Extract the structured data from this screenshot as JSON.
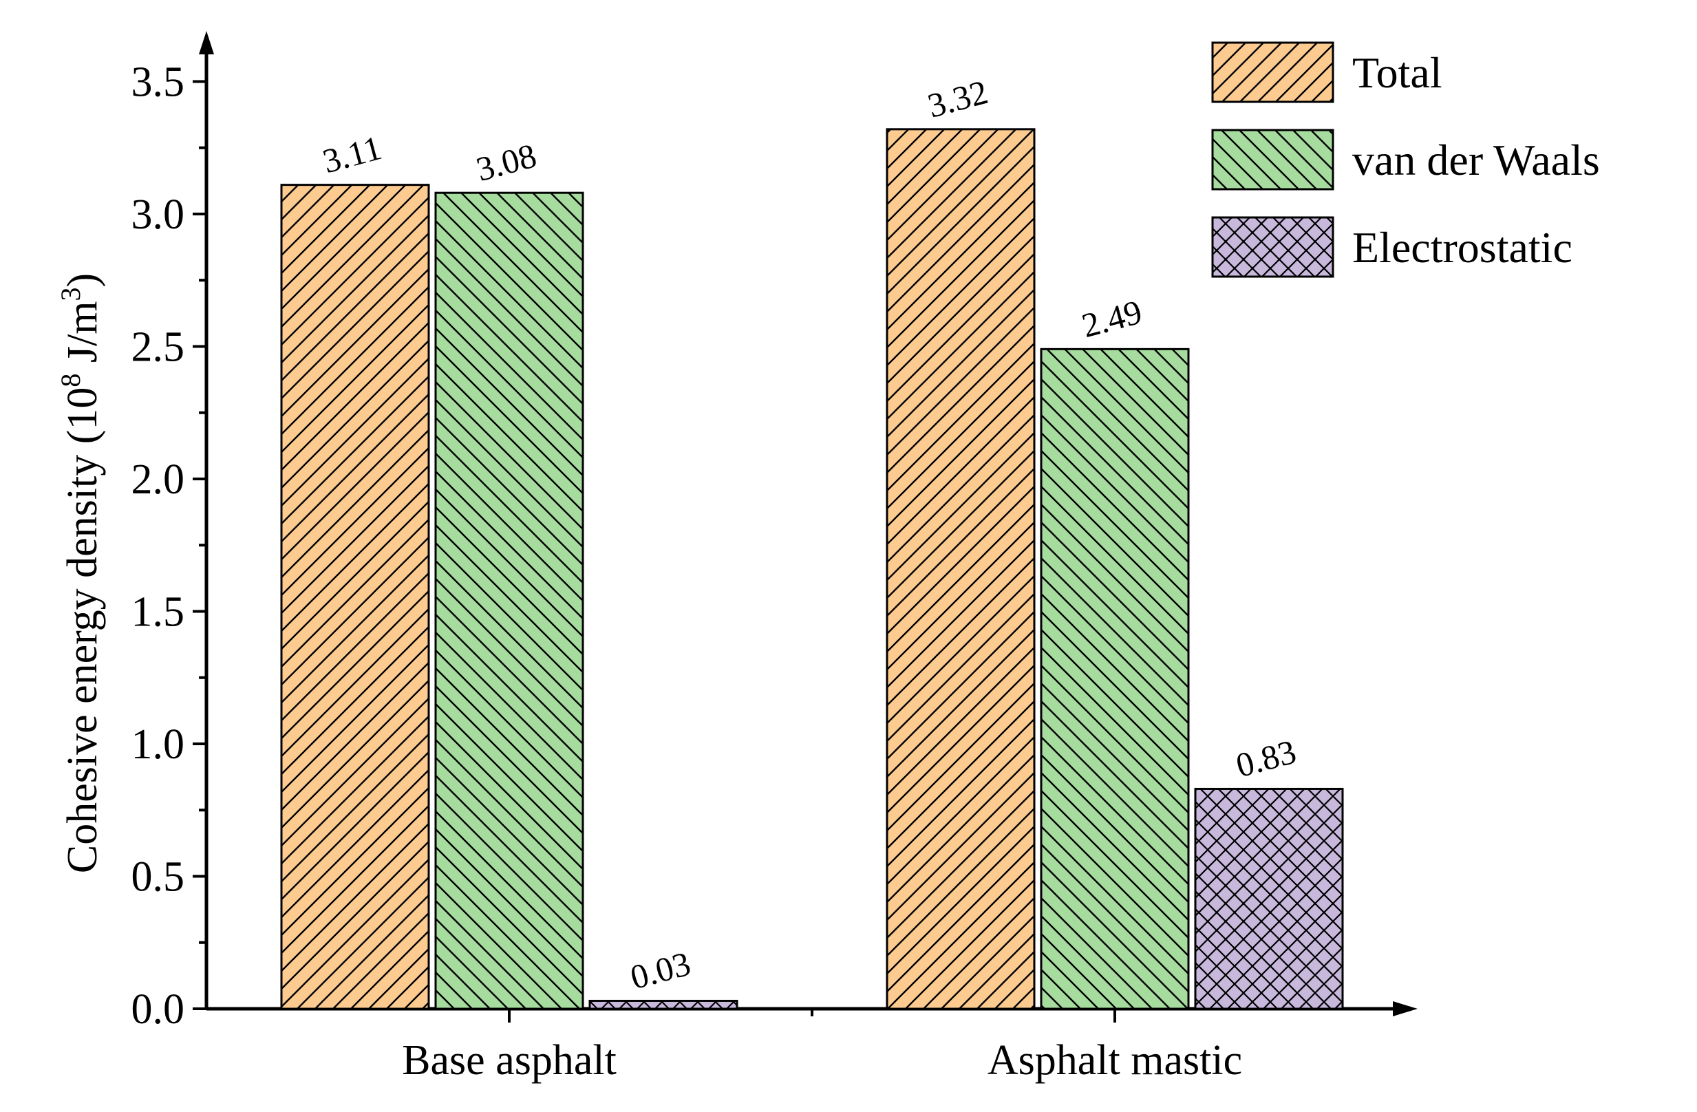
{
  "chart_data": {
    "type": "bar",
    "title": "",
    "xlabel": "",
    "ylabel": "Cohesive energy density (10",
    "ylabel_sup1": "8",
    "ylabel_mid": " J/m",
    "ylabel_sup2": "3",
    "ylabel_end": ")",
    "categories": [
      "Base asphalt",
      "Asphalt mastic"
    ],
    "series": [
      {
        "name": "Total",
        "values": [
          3.11,
          3.32
        ],
        "labels": [
          "3.11",
          "3.32"
        ],
        "color": "#fdcb8f",
        "pattern": "diag-up"
      },
      {
        "name": "van der Waals",
        "values": [
          3.08,
          2.49
        ],
        "labels": [
          "3.08",
          "2.49"
        ],
        "color": "#a6dc9e",
        "pattern": "diag-down"
      },
      {
        "name": "Electrostatic",
        "values": [
          0.03,
          0.83
        ],
        "labels": [
          "0.03",
          "0.83"
        ],
        "color": "#c7b8dc",
        "pattern": "cross"
      }
    ],
    "ylim": [
      0,
      3.65
    ],
    "yticks": [
      "0.0",
      "0.5",
      "1.0",
      "1.5",
      "2.0",
      "2.5",
      "3.0",
      "3.5"
    ],
    "grid": false,
    "legend_position": "top-right"
  }
}
